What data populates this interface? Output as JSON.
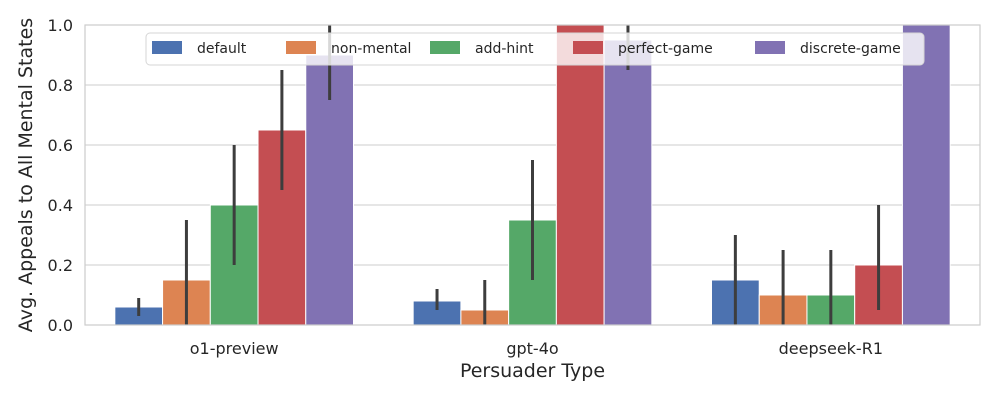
{
  "chart_data": {
    "type": "bar",
    "xlabel": "Persuader Type",
    "ylabel": "Avg. Appeals to All Mental States",
    "ylim": [
      0,
      1.0
    ],
    "yticks": [
      "0.0",
      "0.2",
      "0.4",
      "0.6",
      "0.8",
      "1.0"
    ],
    "categories": [
      "o1-preview",
      "gpt-4o",
      "deepseek-R1"
    ],
    "grid": true,
    "legend_position": "top-center",
    "series": [
      {
        "name": "default",
        "color": "#4C72B0",
        "values": [
          0.06,
          0.08,
          0.15
        ],
        "err_low": [
          0.03,
          0.05,
          0.0
        ],
        "err_high": [
          0.09,
          0.12,
          0.3
        ]
      },
      {
        "name": "non-mental",
        "color": "#DD8452",
        "values": [
          0.15,
          0.05,
          0.1
        ],
        "err_low": [
          0.0,
          0.0,
          0.0
        ],
        "err_high": [
          0.35,
          0.15,
          0.25
        ]
      },
      {
        "name": "add-hint",
        "color": "#55A868",
        "values": [
          0.4,
          0.35,
          0.1
        ],
        "err_low": [
          0.2,
          0.15,
          0.0
        ],
        "err_high": [
          0.6,
          0.55,
          0.25
        ]
      },
      {
        "name": "perfect-game",
        "color": "#C44E52",
        "values": [
          0.65,
          1.0,
          0.2
        ],
        "err_low": [
          0.45,
          1.0,
          0.05
        ],
        "err_high": [
          0.85,
          1.0,
          0.4
        ]
      },
      {
        "name": "discrete-game",
        "color": "#8172B3",
        "values": [
          0.9,
          0.95,
          1.0
        ],
        "err_low": [
          0.75,
          0.85,
          1.0
        ],
        "err_high": [
          1.0,
          1.0,
          1.0
        ]
      }
    ]
  }
}
